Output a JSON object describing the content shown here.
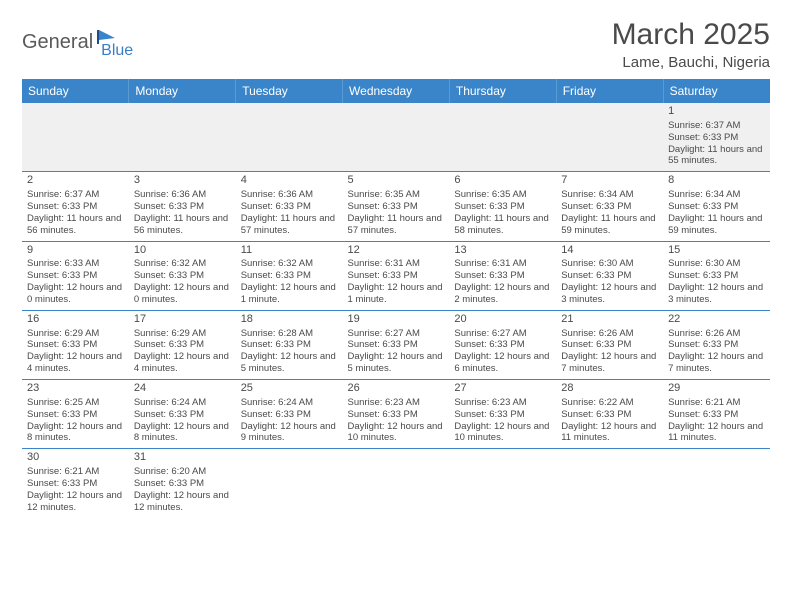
{
  "logo": {
    "text1": "General",
    "text2": "Blue"
  },
  "title": "March 2025",
  "location": "Lame, Bauchi, Nigeria",
  "colors": {
    "header_bg": "#3a85c9",
    "header_text": "#ffffff",
    "cell_border": "#3a85c9",
    "text": "#4a4a4a",
    "empty_bg": "#f0f0f0",
    "logo_gray": "#5a5a5a",
    "logo_blue": "#3a7fc4"
  },
  "weekdays": [
    "Sunday",
    "Monday",
    "Tuesday",
    "Wednesday",
    "Thursday",
    "Friday",
    "Saturday"
  ],
  "first_weekday_index": 6,
  "days": [
    {
      "n": 1,
      "sunrise": "6:37 AM",
      "sunset": "6:33 PM",
      "daylight": "11 hours and 55 minutes."
    },
    {
      "n": 2,
      "sunrise": "6:37 AM",
      "sunset": "6:33 PM",
      "daylight": "11 hours and 56 minutes."
    },
    {
      "n": 3,
      "sunrise": "6:36 AM",
      "sunset": "6:33 PM",
      "daylight": "11 hours and 56 minutes."
    },
    {
      "n": 4,
      "sunrise": "6:36 AM",
      "sunset": "6:33 PM",
      "daylight": "11 hours and 57 minutes."
    },
    {
      "n": 5,
      "sunrise": "6:35 AM",
      "sunset": "6:33 PM",
      "daylight": "11 hours and 57 minutes."
    },
    {
      "n": 6,
      "sunrise": "6:35 AM",
      "sunset": "6:33 PM",
      "daylight": "11 hours and 58 minutes."
    },
    {
      "n": 7,
      "sunrise": "6:34 AM",
      "sunset": "6:33 PM",
      "daylight": "11 hours and 59 minutes."
    },
    {
      "n": 8,
      "sunrise": "6:34 AM",
      "sunset": "6:33 PM",
      "daylight": "11 hours and 59 minutes."
    },
    {
      "n": 9,
      "sunrise": "6:33 AM",
      "sunset": "6:33 PM",
      "daylight": "12 hours and 0 minutes."
    },
    {
      "n": 10,
      "sunrise": "6:32 AM",
      "sunset": "6:33 PM",
      "daylight": "12 hours and 0 minutes."
    },
    {
      "n": 11,
      "sunrise": "6:32 AM",
      "sunset": "6:33 PM",
      "daylight": "12 hours and 1 minute."
    },
    {
      "n": 12,
      "sunrise": "6:31 AM",
      "sunset": "6:33 PM",
      "daylight": "12 hours and 1 minute."
    },
    {
      "n": 13,
      "sunrise": "6:31 AM",
      "sunset": "6:33 PM",
      "daylight": "12 hours and 2 minutes."
    },
    {
      "n": 14,
      "sunrise": "6:30 AM",
      "sunset": "6:33 PM",
      "daylight": "12 hours and 3 minutes."
    },
    {
      "n": 15,
      "sunrise": "6:30 AM",
      "sunset": "6:33 PM",
      "daylight": "12 hours and 3 minutes."
    },
    {
      "n": 16,
      "sunrise": "6:29 AM",
      "sunset": "6:33 PM",
      "daylight": "12 hours and 4 minutes."
    },
    {
      "n": 17,
      "sunrise": "6:29 AM",
      "sunset": "6:33 PM",
      "daylight": "12 hours and 4 minutes."
    },
    {
      "n": 18,
      "sunrise": "6:28 AM",
      "sunset": "6:33 PM",
      "daylight": "12 hours and 5 minutes."
    },
    {
      "n": 19,
      "sunrise": "6:27 AM",
      "sunset": "6:33 PM",
      "daylight": "12 hours and 5 minutes."
    },
    {
      "n": 20,
      "sunrise": "6:27 AM",
      "sunset": "6:33 PM",
      "daylight": "12 hours and 6 minutes."
    },
    {
      "n": 21,
      "sunrise": "6:26 AM",
      "sunset": "6:33 PM",
      "daylight": "12 hours and 7 minutes."
    },
    {
      "n": 22,
      "sunrise": "6:26 AM",
      "sunset": "6:33 PM",
      "daylight": "12 hours and 7 minutes."
    },
    {
      "n": 23,
      "sunrise": "6:25 AM",
      "sunset": "6:33 PM",
      "daylight": "12 hours and 8 minutes."
    },
    {
      "n": 24,
      "sunrise": "6:24 AM",
      "sunset": "6:33 PM",
      "daylight": "12 hours and 8 minutes."
    },
    {
      "n": 25,
      "sunrise": "6:24 AM",
      "sunset": "6:33 PM",
      "daylight": "12 hours and 9 minutes."
    },
    {
      "n": 26,
      "sunrise": "6:23 AM",
      "sunset": "6:33 PM",
      "daylight": "12 hours and 10 minutes."
    },
    {
      "n": 27,
      "sunrise": "6:23 AM",
      "sunset": "6:33 PM",
      "daylight": "12 hours and 10 minutes."
    },
    {
      "n": 28,
      "sunrise": "6:22 AM",
      "sunset": "6:33 PM",
      "daylight": "12 hours and 11 minutes."
    },
    {
      "n": 29,
      "sunrise": "6:21 AM",
      "sunset": "6:33 PM",
      "daylight": "12 hours and 11 minutes."
    },
    {
      "n": 30,
      "sunrise": "6:21 AM",
      "sunset": "6:33 PM",
      "daylight": "12 hours and 12 minutes."
    },
    {
      "n": 31,
      "sunrise": "6:20 AM",
      "sunset": "6:33 PM",
      "daylight": "12 hours and 12 minutes."
    }
  ],
  "labels": {
    "sunrise_prefix": "Sunrise: ",
    "sunset_prefix": "Sunset: ",
    "daylight_prefix": "Daylight: "
  }
}
